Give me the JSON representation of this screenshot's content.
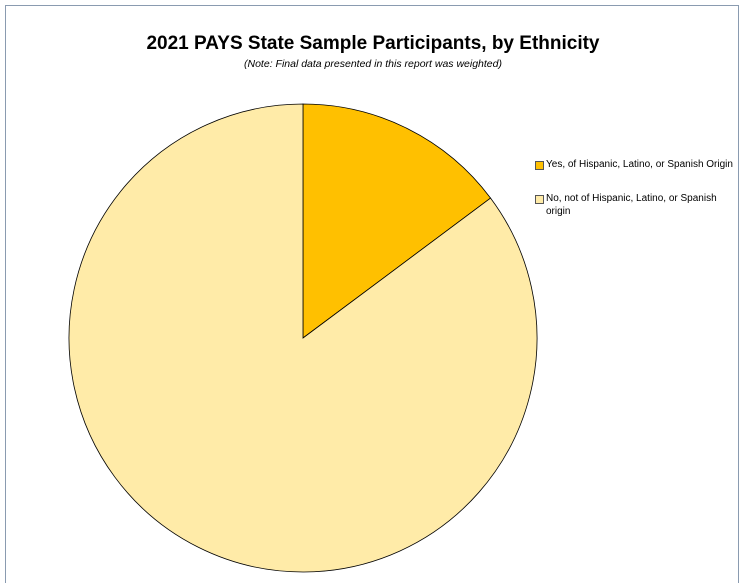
{
  "chart_data": {
    "type": "pie",
    "title": "2021 PAYS State Sample Participants, by Ethnicity",
    "subtitle": "(Note: Final data presented in this report was weighted)",
    "legend_position": "right",
    "slices": [
      {
        "label": "Yes, of Hispanic, Latino, or Spanish Origin",
        "value": 14.8,
        "color": "#FFC000"
      },
      {
        "label": "No, not of Hispanic, Latino, or Spanish origin",
        "value": 85.2,
        "color": "#FFEBA8"
      }
    ]
  }
}
